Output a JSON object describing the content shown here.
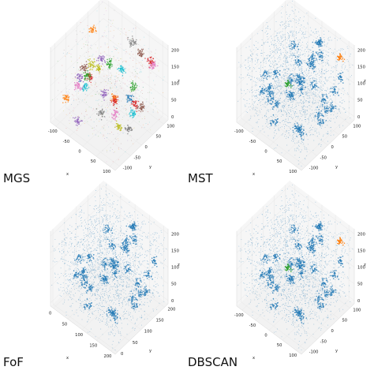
{
  "chart_data": [
    {
      "type": "scatter",
      "dimensions": 3,
      "title": "MGS",
      "xlabel": "x",
      "ylabel": "y",
      "zlabel": "z",
      "xticks": [
        "-100",
        "-50",
        "0",
        "50",
        "100"
      ],
      "yticks": [
        "-100",
        "-50",
        "0",
        "50",
        "100"
      ],
      "zticks": [
        "0",
        "50",
        "100",
        "150",
        "200"
      ],
      "xlim": [
        -120,
        120
      ],
      "ylim": [
        -120,
        120
      ],
      "zlim": [
        -10,
        215
      ],
      "grid": true,
      "colors": [
        "#1f77b4",
        "#ff7f0e",
        "#2ca02c",
        "#d62728",
        "#9467bd",
        "#8c564b",
        "#e377c2",
        "#7f7f7f",
        "#bcbd22",
        "#17becf"
      ],
      "clusters": [
        {
          "x": -95,
          "y": 40,
          "z": 180,
          "color": "#ff7f0e"
        },
        {
          "x": 20,
          "y": 80,
          "z": 190,
          "color": "#7f7f7f"
        },
        {
          "x": 60,
          "y": 70,
          "z": 185,
          "color": "#8c564b"
        },
        {
          "x": 95,
          "y": 70,
          "z": 180,
          "color": "#d62728"
        },
        {
          "x": 100,
          "y": 75,
          "z": 170,
          "color": "#e377c2"
        },
        {
          "x": -20,
          "y": -10,
          "z": 170,
          "color": "#9467bd"
        },
        {
          "x": 10,
          "y": -10,
          "z": 175,
          "color": "#2ca02c"
        },
        {
          "x": -15,
          "y": -30,
          "z": 160,
          "color": "#bcbd22"
        },
        {
          "x": 30,
          "y": 20,
          "z": 150,
          "color": "#17becf"
        },
        {
          "x": -60,
          "y": -40,
          "z": 140,
          "color": "#8c564b"
        },
        {
          "x": -40,
          "y": -40,
          "z": 125,
          "color": "#d62728"
        },
        {
          "x": -75,
          "y": 10,
          "z": 110,
          "color": "#bcbd22"
        },
        {
          "x": -85,
          "y": -30,
          "z": 90,
          "color": "#9467bd"
        },
        {
          "x": -80,
          "y": -5,
          "z": 80,
          "color": "#2ca02c"
        },
        {
          "x": -70,
          "y": -25,
          "z": 65,
          "color": "#17becf"
        },
        {
          "x": -100,
          "y": -20,
          "z": 45,
          "color": "#e377c2"
        },
        {
          "x": -110,
          "y": -60,
          "z": 30,
          "color": "#ff7f0e"
        },
        {
          "x": -20,
          "y": 0,
          "z": 60,
          "color": "#9467bd"
        },
        {
          "x": 20,
          "y": 0,
          "z": 70,
          "color": "#ff7f0e"
        },
        {
          "x": 40,
          "y": 60,
          "z": 80,
          "color": "#2ca02c"
        },
        {
          "x": 45,
          "y": 40,
          "z": 60,
          "color": "#1f77b4"
        },
        {
          "x": 70,
          "y": 30,
          "z": 65,
          "color": "#d62728"
        },
        {
          "x": 95,
          "y": 30,
          "z": 70,
          "color": "#8c564b"
        },
        {
          "x": 80,
          "y": 10,
          "z": 55,
          "color": "#17becf"
        },
        {
          "x": 5,
          "y": 20,
          "z": 40,
          "color": "#d62728"
        },
        {
          "x": -5,
          "y": -30,
          "z": 30,
          "color": "#7f7f7f"
        },
        {
          "x": 30,
          "y": -10,
          "z": 35,
          "color": "#e377c2"
        },
        {
          "x": 50,
          "y": -20,
          "z": 15,
          "color": "#bcbd22"
        },
        {
          "x": 80,
          "y": -10,
          "z": 20,
          "color": "#7f7f7f"
        },
        {
          "x": -50,
          "y": -80,
          "z": 10,
          "color": "#9467bd"
        }
      ]
    },
    {
      "type": "scatter",
      "dimensions": 3,
      "title": "MST",
      "xlabel": "x",
      "ylabel": "y",
      "zlabel": "z",
      "xticks": [
        "-100",
        "-50",
        "0",
        "50",
        "100"
      ],
      "yticks": [
        "-100",
        "-50",
        "0",
        "50",
        "100"
      ],
      "zticks": [
        "0",
        "50",
        "100",
        "150",
        "200"
      ],
      "xlim": [
        -120,
        120
      ],
      "ylim": [
        -120,
        120
      ],
      "zlim": [
        -10,
        215
      ],
      "grid": true,
      "background_color": "#1f77b4",
      "highlight_clusters": [
        {
          "x": 100,
          "y": 80,
          "z": 190,
          "color": "#ff7f0e"
        },
        {
          "x": -20,
          "y": -10,
          "z": 95,
          "color": "#2ca02c"
        }
      ]
    },
    {
      "type": "scatter",
      "dimensions": 3,
      "title": "FoF",
      "xlabel": "x",
      "ylabel": "y",
      "zlabel": "z",
      "xticks": [
        "0",
        "50",
        "100",
        "150",
        "200"
      ],
      "yticks": [
        "0",
        "50",
        "100",
        "150",
        "200"
      ],
      "zticks": [
        "0",
        "50",
        "100",
        "150",
        "200"
      ],
      "xlim": [
        -10,
        215
      ],
      "ylim": [
        -10,
        215
      ],
      "zlim": [
        -10,
        215
      ],
      "grid": true,
      "background_color": "#1f77b4",
      "highlight_clusters": []
    },
    {
      "type": "scatter",
      "dimensions": 3,
      "title": "DBSCAN",
      "xlabel": "x",
      "ylabel": "y",
      "zlabel": "z",
      "xticks": [
        "-100",
        "-50",
        "0",
        "50",
        "100"
      ],
      "yticks": [
        "-100",
        "-50",
        "0",
        "50",
        "100"
      ],
      "zticks": [
        "0",
        "50",
        "100",
        "150",
        "200"
      ],
      "xlim": [
        -120,
        120
      ],
      "ylim": [
        -120,
        120
      ],
      "zlim": [
        -10,
        215
      ],
      "grid": true,
      "background_color": "#1f77b4",
      "highlight_clusters": [
        {
          "x": 100,
          "y": 80,
          "z": 190,
          "color": "#ff7f0e"
        },
        {
          "x": -20,
          "y": -10,
          "z": 95,
          "color": "#2ca02c"
        }
      ]
    }
  ]
}
